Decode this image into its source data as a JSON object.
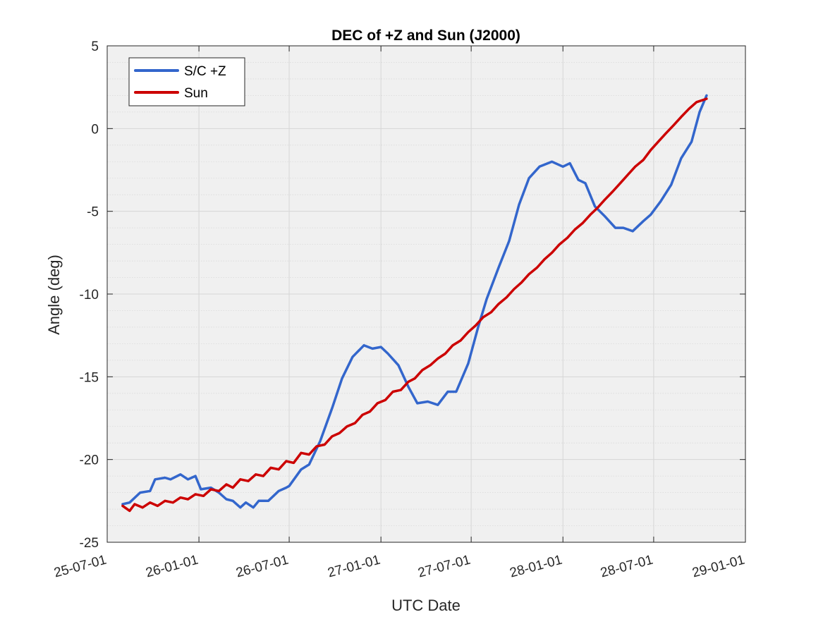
{
  "chart_data": {
    "type": "line",
    "title": "DEC of +Z and Sun (J2000)",
    "xlabel": "UTC Date",
    "ylabel": "Angle (deg)",
    "xlim": [
      "2025-07-01",
      "2029-01-01"
    ],
    "ylim": [
      -25,
      5
    ],
    "x_ticks": [
      "2025-07-01",
      "2026-01-01",
      "2026-07-01",
      "2027-01-01",
      "2027-07-01",
      "2028-01-01",
      "2028-07-01",
      "2029-01-01"
    ],
    "x_tick_labels": [
      "25-07-01",
      "26-01-01",
      "26-07-01",
      "27-01-01",
      "27-07-01",
      "28-01-01",
      "28-07-01",
      "29-01-01"
    ],
    "y_ticks": [
      -25,
      -20,
      -15,
      -10,
      -5,
      0,
      5
    ],
    "y_tick_labels": [
      "-25",
      "-20",
      "-15",
      "-10",
      "-5",
      "0",
      "5"
    ],
    "grid": true,
    "minor_grid_y": true,
    "legend_position": "top-left",
    "series": [
      {
        "name": "S/C +Z",
        "color": "#3366cc",
        "x": [
          "2025-08-01",
          "2025-08-15",
          "2025-09-05",
          "2025-09-25",
          "2025-10-05",
          "2025-10-25",
          "2025-11-05",
          "2025-11-25",
          "2025-12-10",
          "2025-12-25",
          "2026-01-05",
          "2026-01-25",
          "2026-02-10",
          "2026-02-25",
          "2026-03-10",
          "2026-03-25",
          "2026-04-05",
          "2026-04-20",
          "2026-05-01",
          "2026-05-20",
          "2026-06-10",
          "2026-06-25",
          "2026-07-01",
          "2026-07-25",
          "2026-08-10",
          "2026-09-01",
          "2026-09-25",
          "2026-10-15",
          "2026-11-05",
          "2026-11-28",
          "2026-12-15",
          "2027-01-01",
          "2027-01-15",
          "2027-02-05",
          "2027-02-25",
          "2027-03-15",
          "2027-04-05",
          "2027-04-25",
          "2027-05-15",
          "2027-06-01",
          "2027-06-25",
          "2027-07-15",
          "2027-08-01",
          "2027-08-25",
          "2027-09-15",
          "2027-10-05",
          "2027-10-25",
          "2027-11-15",
          "2027-12-10",
          "2028-01-01",
          "2028-01-15",
          "2028-02-01",
          "2028-02-15",
          "2028-03-05",
          "2028-03-25",
          "2028-04-15",
          "2028-05-01",
          "2028-05-20",
          "2028-06-10",
          "2028-06-25",
          "2028-07-15",
          "2028-08-05",
          "2028-08-25",
          "2028-09-15",
          "2028-10-01",
          "2028-10-15"
        ],
        "values": [
          -22.7,
          -22.6,
          -22.0,
          -21.9,
          -21.2,
          -21.1,
          -21.2,
          -20.9,
          -21.2,
          -21.0,
          -21.8,
          -21.7,
          -22.0,
          -22.4,
          -22.5,
          -22.9,
          -22.6,
          -22.9,
          -22.5,
          -22.5,
          -21.9,
          -21.7,
          -21.6,
          -20.6,
          -20.3,
          -18.9,
          -16.9,
          -15.1,
          -13.8,
          -13.1,
          -13.3,
          -13.2,
          -13.6,
          -14.3,
          -15.6,
          -16.6,
          -16.5,
          -16.7,
          -15.9,
          -15.9,
          -14.2,
          -12.0,
          -10.3,
          -8.4,
          -6.8,
          -4.6,
          -3.0,
          -2.3,
          -2.0,
          -2.3,
          -2.1,
          -3.1,
          -3.3,
          -4.7,
          -5.3,
          -6.0,
          -6.0,
          -6.2,
          -5.6,
          -5.2,
          -4.4,
          -3.4,
          -1.8,
          -0.8,
          1.0,
          2.0
        ]
      },
      {
        "name": "Sun",
        "color": "#cc0000",
        "x": [
          "2025-08-01",
          "2025-08-15",
          "2025-08-25",
          "2025-09-10",
          "2025-09-25",
          "2025-10-10",
          "2025-10-25",
          "2025-11-10",
          "2025-11-25",
          "2025-12-10",
          "2025-12-25",
          "2026-01-10",
          "2026-01-25",
          "2026-02-10",
          "2026-02-25",
          "2026-03-10",
          "2026-03-25",
          "2026-04-10",
          "2026-04-25",
          "2026-05-10",
          "2026-05-25",
          "2026-06-10",
          "2026-06-25",
          "2026-07-10",
          "2026-07-25",
          "2026-08-10",
          "2026-08-25",
          "2026-09-10",
          "2026-09-25",
          "2026-10-10",
          "2026-10-25",
          "2026-11-10",
          "2026-11-25",
          "2026-12-10",
          "2026-12-25",
          "2027-01-10",
          "2027-01-25",
          "2027-02-10",
          "2027-02-25",
          "2027-03-10",
          "2027-03-25",
          "2027-04-10",
          "2027-04-25",
          "2027-05-10",
          "2027-05-25",
          "2027-06-10",
          "2027-06-25",
          "2027-07-10",
          "2027-07-25",
          "2027-08-10",
          "2027-08-25",
          "2027-09-10",
          "2027-09-25",
          "2027-10-10",
          "2027-10-25",
          "2027-11-10",
          "2027-11-25",
          "2027-12-10",
          "2027-12-25",
          "2028-01-10",
          "2028-01-25",
          "2028-02-10",
          "2028-02-25",
          "2028-03-10",
          "2028-03-25",
          "2028-04-10",
          "2028-04-25",
          "2028-05-10",
          "2028-05-25",
          "2028-06-10",
          "2028-06-25",
          "2028-07-10",
          "2028-07-25",
          "2028-08-10",
          "2028-08-25",
          "2028-09-10",
          "2028-09-25",
          "2028-10-15"
        ],
        "values": [
          -22.8,
          -23.1,
          -22.7,
          -22.9,
          -22.6,
          -22.8,
          -22.5,
          -22.6,
          -22.3,
          -22.4,
          -22.1,
          -22.2,
          -21.8,
          -21.9,
          -21.5,
          -21.7,
          -21.2,
          -21.3,
          -20.9,
          -21.0,
          -20.5,
          -20.6,
          -20.1,
          -20.2,
          -19.6,
          -19.7,
          -19.2,
          -19.1,
          -18.6,
          -18.4,
          -18.0,
          -17.8,
          -17.3,
          -17.1,
          -16.6,
          -16.4,
          -15.9,
          -15.8,
          -15.3,
          -15.1,
          -14.6,
          -14.3,
          -13.9,
          -13.6,
          -13.1,
          -12.8,
          -12.3,
          -11.9,
          -11.4,
          -11.1,
          -10.6,
          -10.2,
          -9.7,
          -9.3,
          -8.8,
          -8.4,
          -7.9,
          -7.5,
          -7.0,
          -6.6,
          -6.1,
          -5.7,
          -5.2,
          -4.8,
          -4.3,
          -3.8,
          -3.3,
          -2.8,
          -2.3,
          -1.9,
          -1.3,
          -0.8,
          -0.3,
          0.2,
          0.7,
          1.2,
          1.6,
          1.8
        ]
      }
    ]
  }
}
